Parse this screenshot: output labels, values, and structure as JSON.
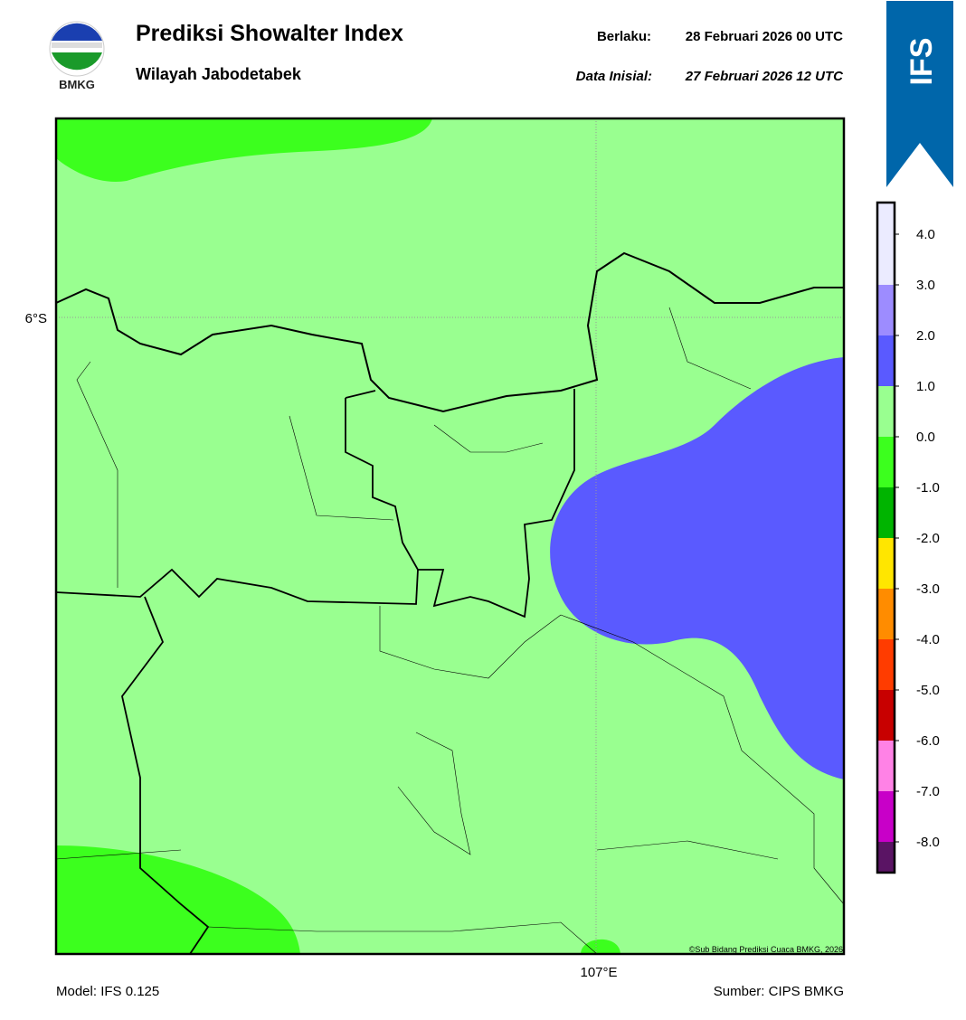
{
  "header": {
    "logo_text": "BMKG",
    "title": "Prediksi Showalter Index",
    "subtitle": "Wilayah Jabodetabek",
    "valid_label": "Berlaku:",
    "valid_time": "28 Februari 2026 00 UTC",
    "init_label": "Data Inisial:",
    "init_time": "27 Februari 2026 12 UTC"
  },
  "badge": {
    "text": "IFS"
  },
  "map": {
    "lat_label": "6°S",
    "lon_label": "107°E",
    "credit": "©Sub Bidang Prediksi Cuaca BMKG, 2026"
  },
  "colorbar": {
    "ticks": [
      "4.0",
      "3.0",
      "2.0",
      "1.0",
      "0.0",
      "-1.0",
      "-2.0",
      "-3.0",
      "-4.0",
      "-5.0",
      "-6.0",
      "-7.0",
      "-8.0"
    ],
    "colors": [
      "#ebebff",
      "#9d8cff",
      "#5a5aff",
      "#99ff90",
      "#3cff1e",
      "#00b400",
      "#ffe600",
      "#ff8c00",
      "#ff3c00",
      "#c80000",
      "#ff82e6",
      "#c800c8",
      "#5a1464"
    ]
  },
  "footer": {
    "model": "Model: IFS 0.125",
    "source": "Sumber: CIPS BMKG"
  }
}
